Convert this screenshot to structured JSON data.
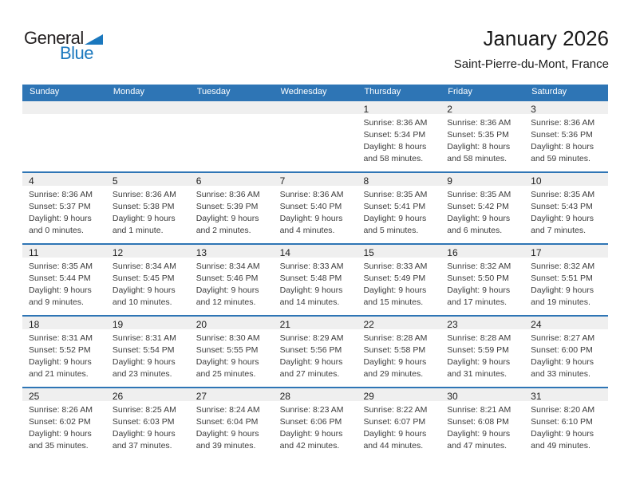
{
  "logo": {
    "general": "General",
    "blue": "Blue"
  },
  "header": {
    "month_title": "January 2026",
    "location": "Saint-Pierre-du-Mont, France"
  },
  "colors": {
    "header-blue": "#2e75b5",
    "logo-blue": "#1b78be",
    "band-gray": "#efefef",
    "text-dark": "#3c3c3c"
  },
  "calendar": {
    "weekdays": [
      "Sunday",
      "Monday",
      "Tuesday",
      "Wednesday",
      "Thursday",
      "Friday",
      "Saturday"
    ],
    "weeks": [
      [
        null,
        null,
        null,
        null,
        {
          "day": "1",
          "sunrise": "Sunrise: 8:36 AM",
          "sunset": "Sunset: 5:34 PM",
          "daylight": "Daylight: 8 hours and 58 minutes."
        },
        {
          "day": "2",
          "sunrise": "Sunrise: 8:36 AM",
          "sunset": "Sunset: 5:35 PM",
          "daylight": "Daylight: 8 hours and 58 minutes."
        },
        {
          "day": "3",
          "sunrise": "Sunrise: 8:36 AM",
          "sunset": "Sunset: 5:36 PM",
          "daylight": "Daylight: 8 hours and 59 minutes."
        }
      ],
      [
        {
          "day": "4",
          "sunrise": "Sunrise: 8:36 AM",
          "sunset": "Sunset: 5:37 PM",
          "daylight": "Daylight: 9 hours and 0 minutes."
        },
        {
          "day": "5",
          "sunrise": "Sunrise: 8:36 AM",
          "sunset": "Sunset: 5:38 PM",
          "daylight": "Daylight: 9 hours and 1 minute."
        },
        {
          "day": "6",
          "sunrise": "Sunrise: 8:36 AM",
          "sunset": "Sunset: 5:39 PM",
          "daylight": "Daylight: 9 hours and 2 minutes."
        },
        {
          "day": "7",
          "sunrise": "Sunrise: 8:36 AM",
          "sunset": "Sunset: 5:40 PM",
          "daylight": "Daylight: 9 hours and 4 minutes."
        },
        {
          "day": "8",
          "sunrise": "Sunrise: 8:35 AM",
          "sunset": "Sunset: 5:41 PM",
          "daylight": "Daylight: 9 hours and 5 minutes."
        },
        {
          "day": "9",
          "sunrise": "Sunrise: 8:35 AM",
          "sunset": "Sunset: 5:42 PM",
          "daylight": "Daylight: 9 hours and 6 minutes."
        },
        {
          "day": "10",
          "sunrise": "Sunrise: 8:35 AM",
          "sunset": "Sunset: 5:43 PM",
          "daylight": "Daylight: 9 hours and 7 minutes."
        }
      ],
      [
        {
          "day": "11",
          "sunrise": "Sunrise: 8:35 AM",
          "sunset": "Sunset: 5:44 PM",
          "daylight": "Daylight: 9 hours and 9 minutes."
        },
        {
          "day": "12",
          "sunrise": "Sunrise: 8:34 AM",
          "sunset": "Sunset: 5:45 PM",
          "daylight": "Daylight: 9 hours and 10 minutes."
        },
        {
          "day": "13",
          "sunrise": "Sunrise: 8:34 AM",
          "sunset": "Sunset: 5:46 PM",
          "daylight": "Daylight: 9 hours and 12 minutes."
        },
        {
          "day": "14",
          "sunrise": "Sunrise: 8:33 AM",
          "sunset": "Sunset: 5:48 PM",
          "daylight": "Daylight: 9 hours and 14 minutes."
        },
        {
          "day": "15",
          "sunrise": "Sunrise: 8:33 AM",
          "sunset": "Sunset: 5:49 PM",
          "daylight": "Daylight: 9 hours and 15 minutes."
        },
        {
          "day": "16",
          "sunrise": "Sunrise: 8:32 AM",
          "sunset": "Sunset: 5:50 PM",
          "daylight": "Daylight: 9 hours and 17 minutes."
        },
        {
          "day": "17",
          "sunrise": "Sunrise: 8:32 AM",
          "sunset": "Sunset: 5:51 PM",
          "daylight": "Daylight: 9 hours and 19 minutes."
        }
      ],
      [
        {
          "day": "18",
          "sunrise": "Sunrise: 8:31 AM",
          "sunset": "Sunset: 5:52 PM",
          "daylight": "Daylight: 9 hours and 21 minutes."
        },
        {
          "day": "19",
          "sunrise": "Sunrise: 8:31 AM",
          "sunset": "Sunset: 5:54 PM",
          "daylight": "Daylight: 9 hours and 23 minutes."
        },
        {
          "day": "20",
          "sunrise": "Sunrise: 8:30 AM",
          "sunset": "Sunset: 5:55 PM",
          "daylight": "Daylight: 9 hours and 25 minutes."
        },
        {
          "day": "21",
          "sunrise": "Sunrise: 8:29 AM",
          "sunset": "Sunset: 5:56 PM",
          "daylight": "Daylight: 9 hours and 27 minutes."
        },
        {
          "day": "22",
          "sunrise": "Sunrise: 8:28 AM",
          "sunset": "Sunset: 5:58 PM",
          "daylight": "Daylight: 9 hours and 29 minutes."
        },
        {
          "day": "23",
          "sunrise": "Sunrise: 8:28 AM",
          "sunset": "Sunset: 5:59 PM",
          "daylight": "Daylight: 9 hours and 31 minutes."
        },
        {
          "day": "24",
          "sunrise": "Sunrise: 8:27 AM",
          "sunset": "Sunset: 6:00 PM",
          "daylight": "Daylight: 9 hours and 33 minutes."
        }
      ],
      [
        {
          "day": "25",
          "sunrise": "Sunrise: 8:26 AM",
          "sunset": "Sunset: 6:02 PM",
          "daylight": "Daylight: 9 hours and 35 minutes."
        },
        {
          "day": "26",
          "sunrise": "Sunrise: 8:25 AM",
          "sunset": "Sunset: 6:03 PM",
          "daylight": "Daylight: 9 hours and 37 minutes."
        },
        {
          "day": "27",
          "sunrise": "Sunrise: 8:24 AM",
          "sunset": "Sunset: 6:04 PM",
          "daylight": "Daylight: 9 hours and 39 minutes."
        },
        {
          "day": "28",
          "sunrise": "Sunrise: 8:23 AM",
          "sunset": "Sunset: 6:06 PM",
          "daylight": "Daylight: 9 hours and 42 minutes."
        },
        {
          "day": "29",
          "sunrise": "Sunrise: 8:22 AM",
          "sunset": "Sunset: 6:07 PM",
          "daylight": "Daylight: 9 hours and 44 minutes."
        },
        {
          "day": "30",
          "sunrise": "Sunrise: 8:21 AM",
          "sunset": "Sunset: 6:08 PM",
          "daylight": "Daylight: 9 hours and 47 minutes."
        },
        {
          "day": "31",
          "sunrise": "Sunrise: 8:20 AM",
          "sunset": "Sunset: 6:10 PM",
          "daylight": "Daylight: 9 hours and 49 minutes."
        }
      ]
    ]
  }
}
